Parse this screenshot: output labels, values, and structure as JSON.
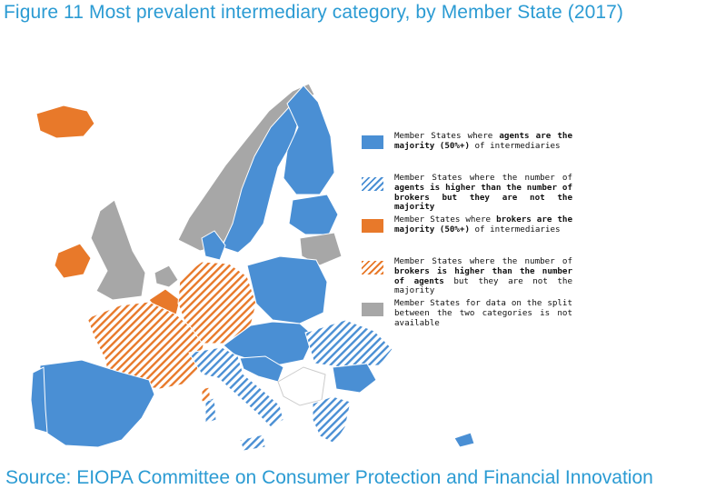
{
  "title": "Figure 11 Most prevalent intermediary category, by Member State (2017)",
  "source": "Source: EIOPA Committee on Consumer Protection and Financial Innovation",
  "colors": {
    "agents_majority": "#4a8fd4",
    "brokers_majority": "#e8792a",
    "not_available": "#a7a7a7",
    "title_blue": "#2b9bd3"
  },
  "legend": [
    {
      "key": "agents_majority",
      "pattern": "solid",
      "parts": [
        {
          "t": "Member States where ",
          "b": false
        },
        {
          "t": "agents are the majority (50%+)",
          "b": true
        },
        {
          "t": " of intermediaries",
          "b": false
        }
      ]
    },
    {
      "key": "agents_higher",
      "pattern": "hatched",
      "parts": [
        {
          "t": "Member States where the number of ",
          "b": false
        },
        {
          "t": "agents is higher than the number of brokers but they are not the majority",
          "b": true
        }
      ]
    },
    {
      "key": "brokers_majority",
      "pattern": "solid",
      "parts": [
        {
          "t": "Member States where ",
          "b": false
        },
        {
          "t": "brokers are the majority (50%+)",
          "b": true
        },
        {
          "t": " of intermediaries",
          "b": false
        }
      ]
    },
    {
      "key": "brokers_higher",
      "pattern": "hatched",
      "parts": [
        {
          "t": "Member States where the number of ",
          "b": false
        },
        {
          "t": "brokers is higher than the number of agents",
          "b": true
        },
        {
          "t": " but they are not the majority",
          "b": false
        }
      ]
    },
    {
      "key": "not_available",
      "pattern": "solid",
      "parts": [
        {
          "t": "Member States for data on the split between the two categories is not available",
          "b": false
        }
      ]
    }
  ]
}
